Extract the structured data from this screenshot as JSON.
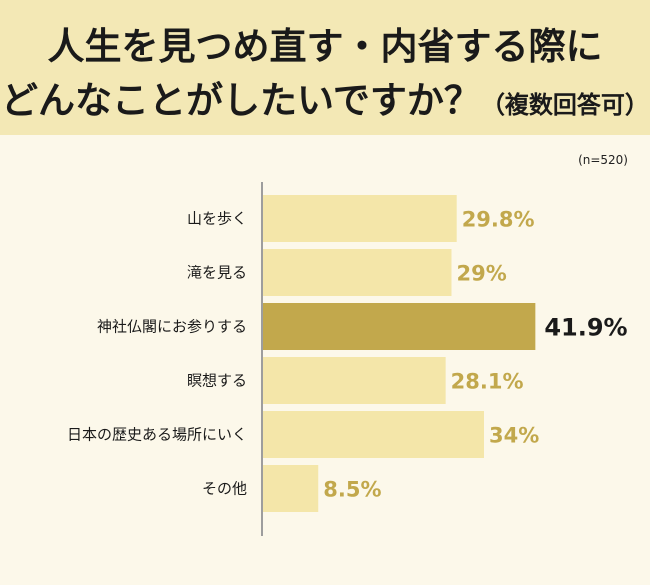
{
  "header": {
    "title_line1": "人生を見つめ直す・内省する際に",
    "title_line2": "どんなことがしたいですか？",
    "title_note": "（複数回答可）"
  },
  "sample_size": "(n=520)",
  "colors": {
    "bar": "#f4e6a9",
    "bar_highlight": "#c2a84c",
    "value_text": "#c2a84c",
    "value_text_highlight": "#1a1a1a",
    "axis": "#9d9d9d",
    "header_bg": "#f3e8b5",
    "page_bg": "#fcf8ea"
  },
  "chart_data": {
    "type": "bar",
    "orientation": "horizontal",
    "categories": [
      "山を歩く",
      "滝を見る",
      "神社仏閣にお参りする",
      "瞑想する",
      "日本の歴史ある場所にいく",
      "その他"
    ],
    "values": [
      29.8,
      29,
      41.9,
      28.1,
      34,
      8.5
    ],
    "value_labels": [
      "29.8%",
      "29%",
      "41.9%",
      "28.1%",
      "34%",
      "8.5%"
    ],
    "highlight_index": 2,
    "unit": "%",
    "xlim": [
      0,
      50
    ]
  }
}
